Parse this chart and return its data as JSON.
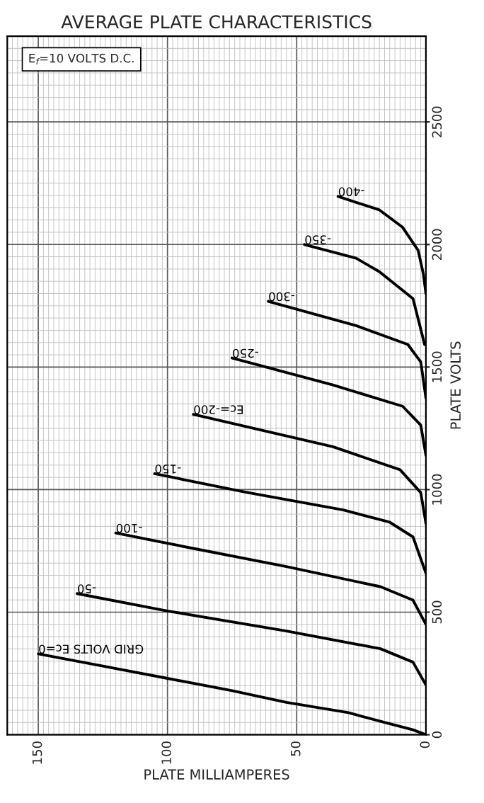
{
  "chart_data": {
    "type": "line",
    "title": "AVERAGE PLATE CHARACTERISTICS",
    "xlabel": "PLATE MILLIAMPERES",
    "ylabel": "PLATE VOLTS",
    "annotations": [
      "E$_{f}$=10 VOLTS D.C."
    ],
    "xlim": [
      162,
      0
    ],
    "xticks": [
      150,
      100,
      50,
      0
    ],
    "ylim": [
      0,
      2850
    ],
    "yticks": [
      0,
      500,
      1000,
      1500,
      2000,
      2500
    ],
    "grid": true,
    "legend": false,
    "marker": "none",
    "line_style": "solid",
    "series": [
      {
        "name": "GRID VOLTS Ec=0",
        "color": "#000000",
        "x": [
          150,
          125,
          100,
          75,
          54,
          30,
          17.6,
          5,
          0
        ],
        "values": [
          330,
          280,
          230,
          180,
          132,
          90,
          55,
          20,
          0
        ]
      },
      {
        "name": "-50",
        "color": "#000000",
        "x": [
          135,
          100,
          54,
          17.6,
          5,
          0
        ],
        "values": [
          576,
          505,
          423,
          351,
          296,
          203
        ]
      },
      {
        "name": "-100",
        "color": "#000000",
        "x": [
          120,
          90,
          54,
          17.6,
          5,
          0
        ],
        "values": [
          823,
          760,
          686,
          604,
          549,
          450
        ]
      },
      {
        "name": "-150",
        "color": "#000000",
        "x": [
          105,
          70,
          32,
          14,
          5,
          0
        ],
        "values": [
          1065,
          990,
          917,
          867,
          807,
          659
        ]
      },
      {
        "name": "Ec=-200",
        "color": "#000000",
        "x": [
          90,
          36,
          10,
          2,
          0
        ],
        "values": [
          1307,
          1175,
          1081,
          988,
          862
        ]
      },
      {
        "name": "-250",
        "color": "#000000",
        "x": [
          75,
          36,
          9,
          2,
          0
        ],
        "values": [
          1537,
          1427,
          1340,
          1263,
          1140
        ]
      },
      {
        "name": "-300",
        "color": "#000000",
        "x": [
          61,
          27,
          7,
          2,
          0
        ],
        "values": [
          1768,
          1669,
          1592,
          1521,
          1373
        ]
      },
      {
        "name": "-350",
        "color": "#000000",
        "x": [
          47,
          27,
          18,
          5,
          0.5
        ],
        "values": [
          2000,
          1944,
          1889,
          1779,
          1592
        ]
      },
      {
        "name": "-400",
        "color": "#000000",
        "x": [
          34,
          18,
          9,
          3,
          1,
          0
        ],
        "values": [
          2196,
          2141,
          2070,
          1976,
          1880,
          1800
        ]
      }
    ]
  }
}
